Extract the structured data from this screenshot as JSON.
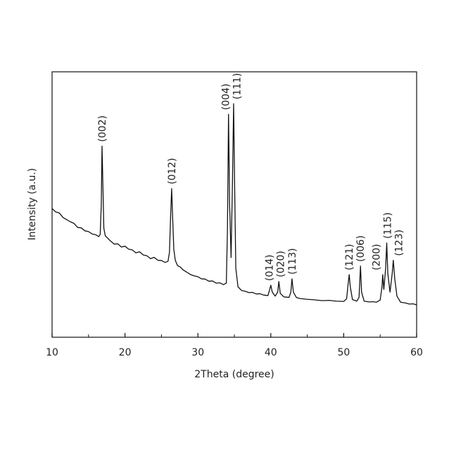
{
  "chart_data": {
    "type": "line",
    "xlabel": "2Theta (degree)",
    "ylabel": "Intensity (a.u.)",
    "xlim": [
      10,
      60
    ],
    "xticks": [
      10,
      20,
      30,
      40,
      50,
      60
    ],
    "xminorticks": [
      15,
      25,
      35,
      45,
      55
    ],
    "ylim": [
      0,
      100
    ],
    "x": [
      10.0,
      10.5,
      11.0,
      11.5,
      12.0,
      12.5,
      13.0,
      13.5,
      14.0,
      14.5,
      15.0,
      15.5,
      16.0,
      16.4,
      16.6,
      16.75,
      16.85,
      16.95,
      17.1,
      17.3,
      17.6,
      18.0,
      18.5,
      19.0,
      19.5,
      20.0,
      20.5,
      21.0,
      21.5,
      22.0,
      22.5,
      23.0,
      23.5,
      24.0,
      24.5,
      25.0,
      25.5,
      25.9,
      26.1,
      26.25,
      26.4,
      26.55,
      26.7,
      26.9,
      27.2,
      27.6,
      28.0,
      28.5,
      29.0,
      29.5,
      30.0,
      30.5,
      31.0,
      31.5,
      32.0,
      32.5,
      33.0,
      33.5,
      33.9,
      34.05,
      34.2,
      34.35,
      34.55,
      34.75,
      34.9,
      35.05,
      35.2,
      35.5,
      36.0,
      36.5,
      37.0,
      37.5,
      38.0,
      38.5,
      39.0,
      39.6,
      39.85,
      40.0,
      40.2,
      40.6,
      40.95,
      41.1,
      41.3,
      41.8,
      42.5,
      42.75,
      42.9,
      43.1,
      43.5,
      44.0,
      45.0,
      46.0,
      47.0,
      48.0,
      49.0,
      50.0,
      50.4,
      50.6,
      50.75,
      50.9,
      51.2,
      51.8,
      52.1,
      52.3,
      52.45,
      52.8,
      53.5,
      54.0,
      54.5,
      55.0,
      55.25,
      55.35,
      55.5,
      55.75,
      55.9,
      56.05,
      56.35,
      56.65,
      56.8,
      57.0,
      57.3,
      57.8,
      58.5,
      59.0,
      59.5,
      60.0
    ],
    "series": [
      {
        "color": "#111111",
        "values": [
          48.5,
          47.2,
          46.8,
          45.1,
          44.3,
          43.5,
          42.9,
          41.4,
          41.2,
          40.1,
          39.8,
          38.9,
          38.6,
          37.9,
          38.8,
          50,
          72,
          60,
          41,
          38.2,
          37.4,
          36.3,
          35.1,
          35.2,
          34.0,
          34.3,
          33.2,
          32.9,
          31.8,
          32.2,
          31.0,
          30.7,
          29.6,
          30.1,
          29.0,
          28.9,
          28.2,
          28.6,
          32,
          45,
          56,
          44,
          33,
          29,
          27.0,
          26.4,
          25.3,
          24.5,
          23.6,
          23.1,
          22.8,
          22.0,
          21.9,
          21.1,
          21.2,
          20.4,
          20.5,
          19.8,
          20.4,
          40,
          84,
          50,
          30,
          60,
          88,
          55,
          26,
          19.0,
          17.6,
          17.3,
          16.8,
          16.9,
          16.3,
          16.4,
          15.9,
          15.7,
          18,
          19.6,
          17,
          15.5,
          17,
          21,
          16.5,
          15.2,
          15.0,
          17,
          22,
          17,
          15.0,
          14.6,
          14.3,
          14.1,
          13.8,
          13.9,
          13.6,
          13.5,
          14.5,
          20,
          23.6,
          19,
          14.2,
          13.6,
          15,
          26.8,
          17,
          13.6,
          13.3,
          13.4,
          13.2,
          14,
          19,
          23.6,
          18,
          26,
          35.5,
          24,
          17,
          24,
          29,
          22,
          15.5,
          13.2,
          12.9,
          12.5,
          12.6,
          12.2
        ]
      }
    ],
    "annotations": [
      {
        "text": "(002)",
        "x": 16.85
      },
      {
        "text": "(012)",
        "x": 26.4
      },
      {
        "text": "(004)",
        "x": 34.2
      },
      {
        "text": "(111)",
        "x": 34.9
      },
      {
        "text": "(014)",
        "x": 40.0
      },
      {
        "text": "(020)",
        "x": 41.1
      },
      {
        "text": "(113)",
        "x": 42.9
      },
      {
        "text": "(121)",
        "x": 50.75
      },
      {
        "text": "(006)",
        "x": 52.3
      },
      {
        "text": "(200)",
        "x": 55.35
      },
      {
        "text": "(115)",
        "x": 55.9
      },
      {
        "text": "(123)",
        "x": 56.8
      }
    ]
  }
}
